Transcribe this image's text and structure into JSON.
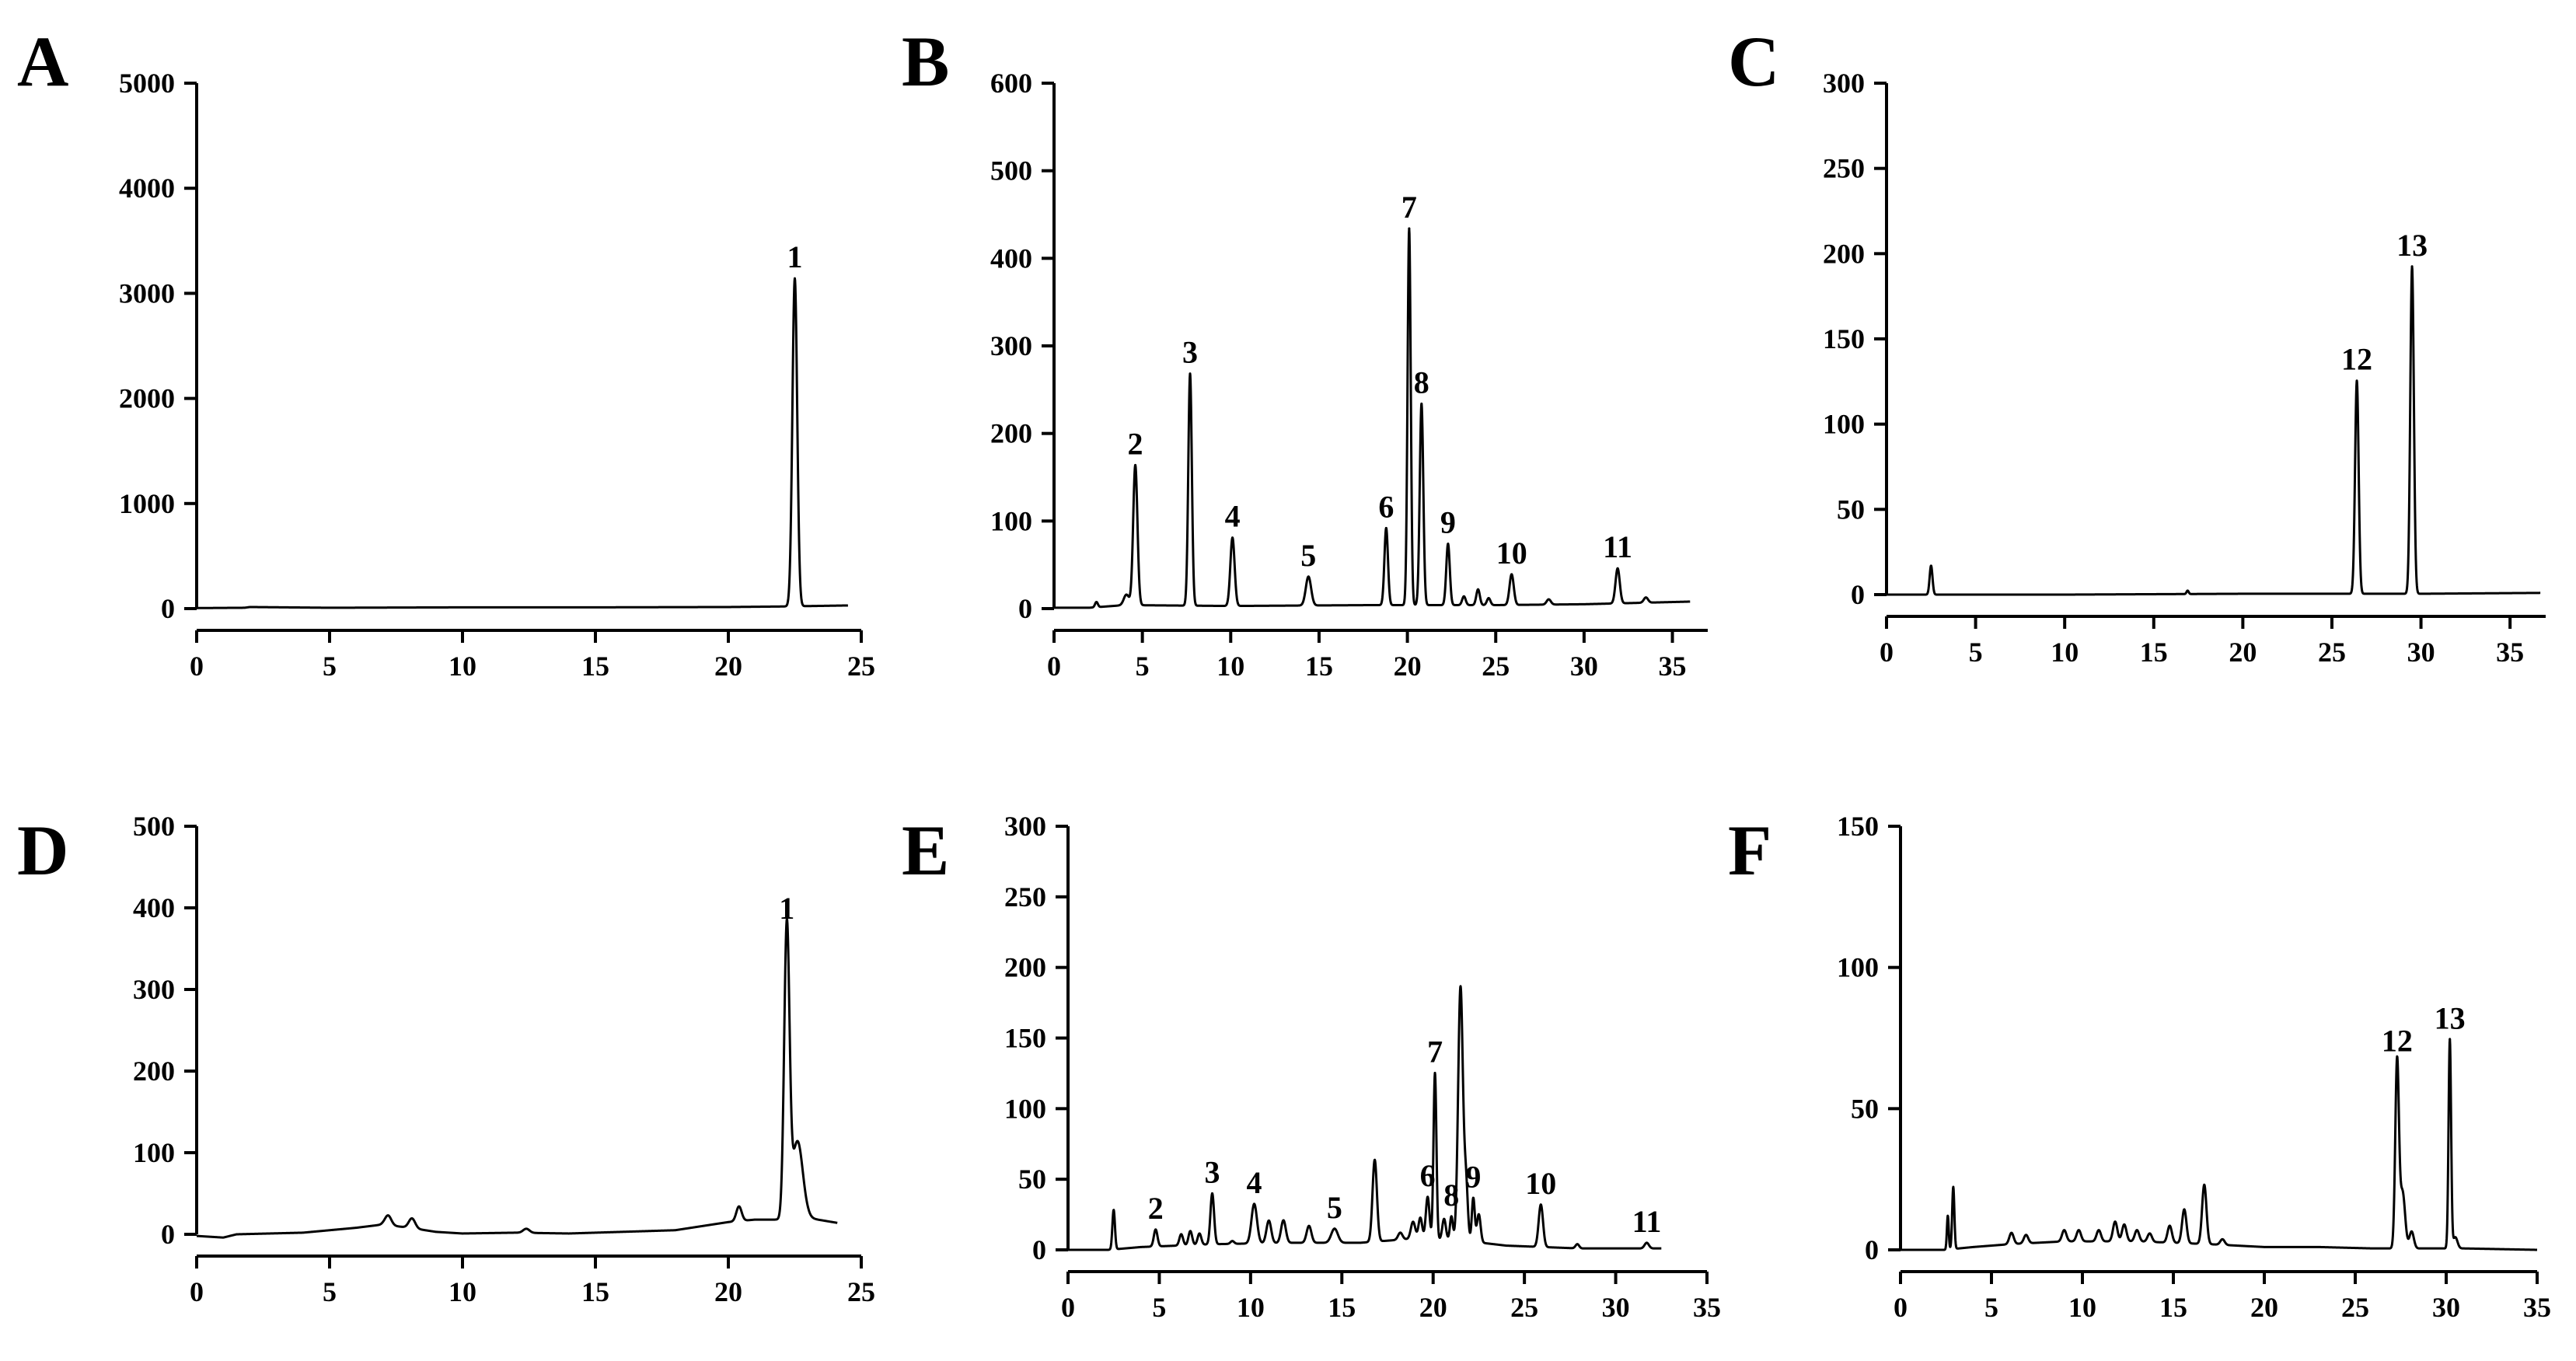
{
  "figure": {
    "colors": {
      "line": "#000000",
      "background": "#ffffff"
    }
  },
  "chart_data": [
    {
      "panel": "A",
      "type": "line",
      "title": "",
      "xlabel": "",
      "ylabel": "",
      "xlim": [
        0,
        25
      ],
      "ylim": [
        0,
        5000
      ],
      "xticks": [
        0,
        5,
        10,
        15,
        20,
        25
      ],
      "yticks": [
        0,
        1000,
        2000,
        3000,
        4000,
        5000
      ],
      "x_end": 24.5,
      "baseline": [
        [
          0,
          5
        ],
        [
          1.8,
          8
        ],
        [
          2,
          15
        ],
        [
          5,
          8
        ],
        [
          10,
          12
        ],
        [
          15,
          12
        ],
        [
          20,
          15
        ],
        [
          22,
          20
        ],
        [
          24.5,
          30
        ]
      ],
      "peaks": [
        {
          "x": 22.5,
          "y": 3120,
          "w": 0.09,
          "label": "1"
        }
      ],
      "bumps": []
    },
    {
      "panel": "B",
      "type": "line",
      "title": "",
      "xlabel": "",
      "ylabel": "",
      "xlim": [
        0,
        37
      ],
      "ylim": [
        0,
        600
      ],
      "xticks": [
        0,
        5,
        10,
        15,
        20,
        25,
        30,
        35
      ],
      "yticks": [
        0,
        100,
        200,
        300,
        400,
        500,
        600
      ],
      "x_end": 36,
      "baseline": [
        [
          0,
          1
        ],
        [
          2,
          1
        ],
        [
          4,
          4
        ],
        [
          10,
          3
        ],
        [
          18,
          4
        ],
        [
          25,
          4
        ],
        [
          30,
          5
        ],
        [
          36,
          8
        ]
      ],
      "peaks": [
        {
          "x": 4.6,
          "y": 160,
          "w": 0.12,
          "label": "2"
        },
        {
          "x": 7.7,
          "y": 265,
          "w": 0.1,
          "label": "3"
        },
        {
          "x": 10.1,
          "y": 78,
          "w": 0.12,
          "label": "4"
        },
        {
          "x": 14.4,
          "y": 33,
          "w": 0.15,
          "label": "5"
        },
        {
          "x": 18.8,
          "y": 88,
          "w": 0.1,
          "label": "6"
        },
        {
          "x": 20.1,
          "y": 430,
          "w": 0.09,
          "label": "7"
        },
        {
          "x": 20.8,
          "y": 230,
          "w": 0.1,
          "label": "8"
        },
        {
          "x": 22.3,
          "y": 70,
          "w": 0.1,
          "label": "9"
        },
        {
          "x": 25.9,
          "y": 35,
          "w": 0.12,
          "label": "10"
        },
        {
          "x": 31.9,
          "y": 40,
          "w": 0.12,
          "label": "11"
        }
      ],
      "bumps": [
        {
          "x": 2.4,
          "y": 6,
          "w": 0.08
        },
        {
          "x": 4.1,
          "y": 12,
          "w": 0.15
        },
        {
          "x": 23.2,
          "y": 10,
          "w": 0.1
        },
        {
          "x": 24.0,
          "y": 18,
          "w": 0.1
        },
        {
          "x": 24.6,
          "y": 8,
          "w": 0.1
        },
        {
          "x": 28.0,
          "y": 6,
          "w": 0.12
        },
        {
          "x": 33.5,
          "y": 6,
          "w": 0.12
        }
      ]
    },
    {
      "panel": "C",
      "type": "line",
      "title": "",
      "xlabel": "",
      "ylabel": "",
      "xlim": [
        0,
        37
      ],
      "ylim": [
        0,
        300
      ],
      "xticks": [
        0,
        5,
        10,
        15,
        20,
        25,
        30,
        35
      ],
      "yticks": [
        0,
        50,
        100,
        150,
        200,
        250,
        300
      ],
      "x_end": 36.7,
      "baseline": [
        [
          0,
          0
        ],
        [
          10,
          0
        ],
        [
          20,
          0.5
        ],
        [
          26,
          0.5
        ],
        [
          30,
          0.5
        ],
        [
          36.7,
          1
        ]
      ],
      "peaks": [
        {
          "x": 26.4,
          "y": 125,
          "w": 0.1,
          "label": "12"
        },
        {
          "x": 29.5,
          "y": 192,
          "w": 0.1,
          "label": "13"
        }
      ],
      "bumps": [
        {
          "x": 2.5,
          "y": 17,
          "w": 0.08
        },
        {
          "x": 16.9,
          "y": 2,
          "w": 0.06
        }
      ]
    },
    {
      "panel": "D",
      "type": "line",
      "title": "",
      "xlabel": "",
      "ylabel": "",
      "xlim": [
        0,
        25
      ],
      "ylim": [
        0,
        500
      ],
      "xticks": [
        0,
        5,
        10,
        15,
        20,
        25
      ],
      "yticks": [
        0,
        100,
        200,
        300,
        400,
        500
      ],
      "x_end": 24.1,
      "baseline": [
        [
          0,
          -2
        ],
        [
          1,
          -4
        ],
        [
          1.5,
          0
        ],
        [
          4,
          2
        ],
        [
          6,
          8
        ],
        [
          7,
          12
        ],
        [
          8,
          8
        ],
        [
          9,
          3
        ],
        [
          10,
          1
        ],
        [
          12,
          2
        ],
        [
          14,
          1
        ],
        [
          16,
          3
        ],
        [
          18,
          5
        ],
        [
          20,
          15
        ],
        [
          21,
          18
        ],
        [
          22,
          18
        ],
        [
          23,
          20
        ],
        [
          24.1,
          14
        ]
      ],
      "peaks": [
        {
          "x": 22.2,
          "y": 355,
          "w": 0.1,
          "label": "1"
        }
      ],
      "bumps": [
        {
          "x": 7.2,
          "y": 12,
          "w": 0.12
        },
        {
          "x": 8.1,
          "y": 12,
          "w": 0.12
        },
        {
          "x": 12.4,
          "y": 5,
          "w": 0.12
        },
        {
          "x": 20.4,
          "y": 18,
          "w": 0.1
        },
        {
          "x": 22.6,
          "y": 95,
          "w": 0.2
        }
      ]
    },
    {
      "panel": "E",
      "type": "line",
      "title": "",
      "xlabel": "",
      "ylabel": "",
      "xlim": [
        0,
        35
      ],
      "ylim": [
        0,
        300
      ],
      "xticks": [
        0,
        5,
        10,
        15,
        20,
        25,
        30,
        35
      ],
      "yticks": [
        0,
        50,
        100,
        150,
        200,
        250,
        300
      ],
      "x_end": 32.5,
      "baseline": [
        [
          0,
          0
        ],
        [
          2.2,
          0
        ],
        [
          4,
          2
        ],
        [
          8,
          4
        ],
        [
          12,
          5
        ],
        [
          16,
          5
        ],
        [
          19,
          8
        ],
        [
          22,
          6
        ],
        [
          24,
          3
        ],
        [
          28,
          1
        ],
        [
          32.5,
          1
        ]
      ],
      "peaks": [
        {
          "x": 4.8,
          "y": 12,
          "w": 0.1,
          "label": "2"
        },
        {
          "x": 7.9,
          "y": 36,
          "w": 0.1,
          "label": "3"
        },
        {
          "x": 10.2,
          "y": 28,
          "w": 0.15,
          "label": "4"
        },
        {
          "x": 14.6,
          "y": 10,
          "w": 0.18,
          "label": "5"
        },
        {
          "x": 19.7,
          "y": 30,
          "w": 0.1,
          "label": "6"
        },
        {
          "x": 20.1,
          "y": 118,
          "w": 0.08,
          "label": "7"
        },
        {
          "x": 21.0,
          "y": 17,
          "w": 0.08,
          "label": "8"
        },
        {
          "x": 22.2,
          "y": 31,
          "w": 0.08,
          "label": "9"
        },
        {
          "x": 25.9,
          "y": 30,
          "w": 0.12,
          "label": "10"
        },
        {
          "x": 31.7,
          "y": 4,
          "w": 0.12,
          "label": "11"
        }
      ],
      "bumps": [
        {
          "x": 2.5,
          "y": 28,
          "w": 0.07
        },
        {
          "x": 6.2,
          "y": 8,
          "w": 0.1
        },
        {
          "x": 6.7,
          "y": 10,
          "w": 0.1
        },
        {
          "x": 7.2,
          "y": 8,
          "w": 0.1
        },
        {
          "x": 9.0,
          "y": 2,
          "w": 0.1
        },
        {
          "x": 11.0,
          "y": 16,
          "w": 0.13
        },
        {
          "x": 11.8,
          "y": 16,
          "w": 0.13
        },
        {
          "x": 13.2,
          "y": 12,
          "w": 0.13
        },
        {
          "x": 16.8,
          "y": 58,
          "w": 0.12
        },
        {
          "x": 18.2,
          "y": 5,
          "w": 0.12
        },
        {
          "x": 18.9,
          "y": 12,
          "w": 0.12
        },
        {
          "x": 19.3,
          "y": 15,
          "w": 0.1
        },
        {
          "x": 20.6,
          "y": 15,
          "w": 0.1
        },
        {
          "x": 21.5,
          "y": 180,
          "w": 0.13
        },
        {
          "x": 21.8,
          "y": 40,
          "w": 0.1
        },
        {
          "x": 22.5,
          "y": 20,
          "w": 0.1
        },
        {
          "x": 27.9,
          "y": 3,
          "w": 0.1
        }
      ]
    },
    {
      "panel": "F",
      "type": "line",
      "title": "",
      "xlabel": "",
      "ylabel": "",
      "xlim": [
        0,
        35
      ],
      "ylim": [
        0,
        150
      ],
      "xticks": [
        0,
        5,
        10,
        15,
        20,
        25,
        30,
        35
      ],
      "yticks": [
        0,
        50,
        100,
        150
      ],
      "x_end": 35,
      "baseline": [
        [
          0,
          0
        ],
        [
          2.4,
          0
        ],
        [
          4,
          1
        ],
        [
          6,
          2
        ],
        [
          9,
          3
        ],
        [
          13,
          3
        ],
        [
          17,
          2
        ],
        [
          20,
          1
        ],
        [
          23,
          1
        ],
        [
          26,
          0.5
        ],
        [
          31,
          0.5
        ],
        [
          35,
          0
        ]
      ],
      "peaks": [
        {
          "x": 27.3,
          "y": 66,
          "w": 0.1,
          "label": "12"
        },
        {
          "x": 30.2,
          "y": 74,
          "w": 0.07,
          "label": "13"
        }
      ],
      "bumps": [
        {
          "x": 2.6,
          "y": 12,
          "w": 0.05
        },
        {
          "x": 2.9,
          "y": 22,
          "w": 0.06
        },
        {
          "x": 6.1,
          "y": 4,
          "w": 0.12
        },
        {
          "x": 6.9,
          "y": 3,
          "w": 0.12
        },
        {
          "x": 9.0,
          "y": 4,
          "w": 0.12
        },
        {
          "x": 9.8,
          "y": 4,
          "w": 0.12
        },
        {
          "x": 10.9,
          "y": 4,
          "w": 0.12
        },
        {
          "x": 11.8,
          "y": 7,
          "w": 0.12
        },
        {
          "x": 12.3,
          "y": 6,
          "w": 0.12
        },
        {
          "x": 13.0,
          "y": 4,
          "w": 0.12
        },
        {
          "x": 13.7,
          "y": 3,
          "w": 0.12
        },
        {
          "x": 14.8,
          "y": 6,
          "w": 0.12
        },
        {
          "x": 15.6,
          "y": 12,
          "w": 0.12
        },
        {
          "x": 16.7,
          "y": 21,
          "w": 0.12
        },
        {
          "x": 17.7,
          "y": 2,
          "w": 0.12
        },
        {
          "x": 27.6,
          "y": 20,
          "w": 0.14
        },
        {
          "x": 28.1,
          "y": 6,
          "w": 0.12
        },
        {
          "x": 30.5,
          "y": 4,
          "w": 0.12
        }
      ]
    }
  ]
}
